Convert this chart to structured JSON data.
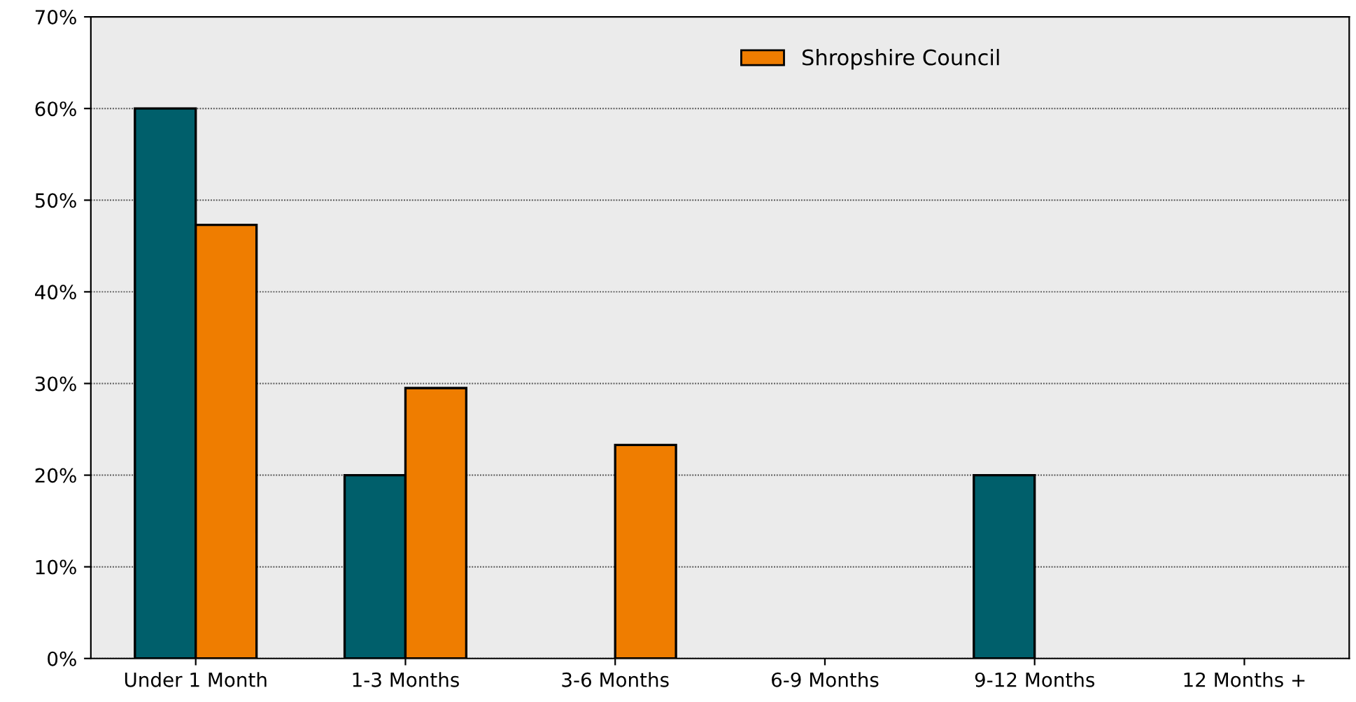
{
  "chart_data": {
    "type": "bar",
    "categories": [
      "Under 1 Month",
      "1-3 Months",
      "3-6 Months",
      "6-9 Months",
      "9-12 Months",
      "12 Months +"
    ],
    "series": [
      {
        "color": "#005f6b",
        "values": [
          60,
          20,
          0,
          0,
          20,
          0
        ]
      },
      {
        "name": "Shropshire Council",
        "color": "#ef7d00",
        "values": [
          47.3,
          29.5,
          23.3,
          0,
          0,
          0
        ]
      }
    ],
    "ylim": [
      0,
      70
    ],
    "yticks": [
      {
        "value": 0,
        "label": "0%"
      },
      {
        "value": 10,
        "label": "10%"
      },
      {
        "value": 20,
        "label": "20%"
      },
      {
        "value": 30,
        "label": "30%"
      },
      {
        "value": 40,
        "label": "40%"
      },
      {
        "value": 50,
        "label": "50%"
      },
      {
        "value": 60,
        "label": "60%"
      },
      {
        "value": 70,
        "label": "70%"
      }
    ],
    "grid": "y",
    "legend": "top"
  }
}
